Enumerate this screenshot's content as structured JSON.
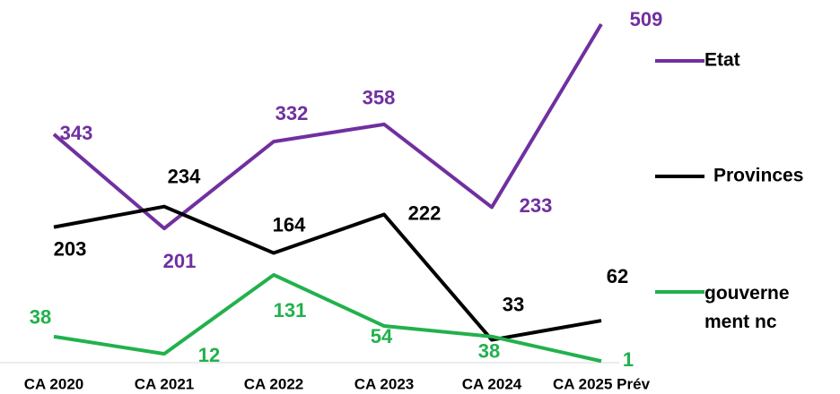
{
  "chart_data": {
    "type": "line",
    "categories": [
      "CA 2020",
      "CA 2021",
      "CA 2022",
      "CA 2023",
      "CA 2024",
      "CA 2025 Prév"
    ],
    "series": [
      {
        "name": "Etat",
        "color": "#7030a0",
        "values": [
          343,
          201,
          332,
          358,
          233,
          509
        ]
      },
      {
        "name": "Provinces",
        "color": "#000000",
        "values": [
          203,
          234,
          164,
          222,
          33,
          62
        ]
      },
      {
        "name": "gouvernement nc",
        "color": "#22b14c",
        "values": [
          38,
          12,
          131,
          54,
          38,
          1
        ]
      }
    ],
    "ylim": [
      0,
      509
    ],
    "grid": false,
    "legend": "right"
  }
}
